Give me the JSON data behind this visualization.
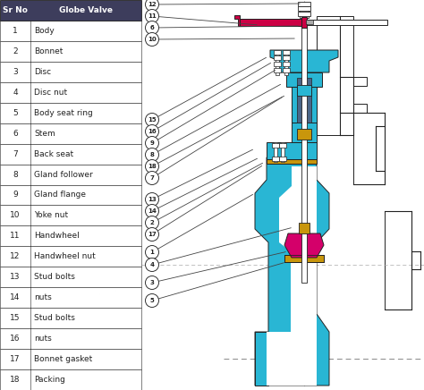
{
  "bg_color": "#ffffff",
  "table_header_bg": "#3d3d5c",
  "table_header_fg": "#ffffff",
  "table_row_bg": "#ffffff",
  "table_border": "#333333",
  "cyan": "#29b6d4",
  "red": "#cc0044",
  "gold": "#c8960c",
  "pink": "#d4006a",
  "dark": "#222222",
  "white": "#ffffff",
  "gray": "#999999",
  "lgray": "#cccccc",
  "parts": [
    [
      1,
      "Body"
    ],
    [
      2,
      "Bonnet"
    ],
    [
      3,
      "Disc"
    ],
    [
      4,
      "Disc nut"
    ],
    [
      5,
      "Body seat ring"
    ],
    [
      6,
      "Stem"
    ],
    [
      7,
      "Back seat"
    ],
    [
      8,
      "Gland follower"
    ],
    [
      9,
      "Gland flange"
    ],
    [
      10,
      "Yoke nut"
    ],
    [
      11,
      "Handwheel"
    ],
    [
      12,
      "Handwheel nut"
    ],
    [
      13,
      "Stud bolts"
    ],
    [
      14,
      "nuts"
    ],
    [
      15,
      "Stud bolts"
    ],
    [
      16,
      "nuts"
    ],
    [
      17,
      "Bonnet gasket"
    ],
    [
      18,
      "Packing"
    ]
  ]
}
